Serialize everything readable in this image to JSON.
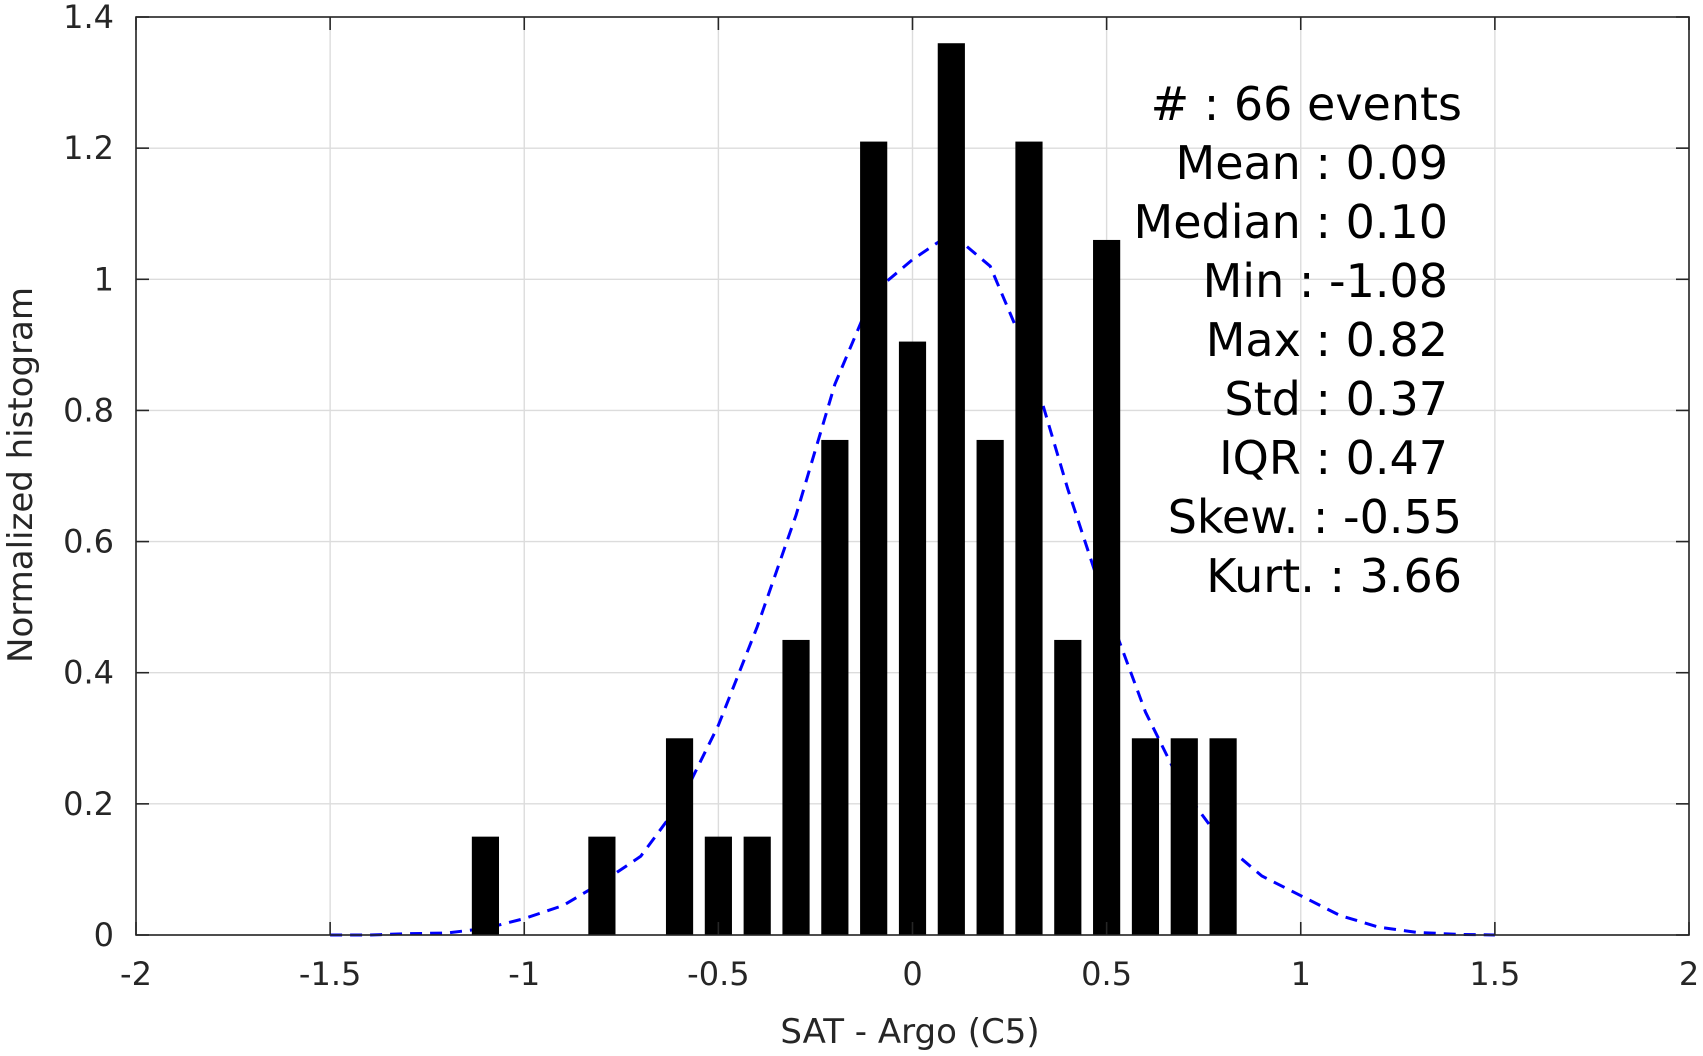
{
  "chart_data": {
    "type": "bar",
    "xlabel": "SAT - Argo (C5)",
    "ylabel": "Normalized histogram",
    "xlim": [
      -2,
      2
    ],
    "ylim": [
      0,
      1.4
    ],
    "x_ticks": [
      -2,
      -1.5,
      -1,
      -0.5,
      0,
      0.5,
      1,
      1.5,
      2
    ],
    "x_tick_labels": [
      "-2",
      "-1.5",
      "-1",
      "-0.5",
      "0",
      "0.5",
      "1",
      "1.5",
      "2"
    ],
    "y_ticks": [
      0,
      0.2,
      0.4,
      0.6,
      0.8,
      1,
      1.2,
      1.4
    ],
    "y_tick_labels": [
      "0",
      "0.2",
      "0.4",
      "0.6",
      "0.8",
      "1",
      "1.2",
      "1.4"
    ],
    "grid": true,
    "bar_width": 0.07,
    "bars": [
      {
        "x": -1.1,
        "value": 0.15
      },
      {
        "x": -0.8,
        "value": 0.15
      },
      {
        "x": -0.6,
        "value": 0.3
      },
      {
        "x": -0.5,
        "value": 0.15
      },
      {
        "x": -0.4,
        "value": 0.15
      },
      {
        "x": -0.3,
        "value": 0.45
      },
      {
        "x": -0.2,
        "value": 0.755
      },
      {
        "x": -0.1,
        "value": 1.21
      },
      {
        "x": 0.0,
        "value": 0.905
      },
      {
        "x": 0.1,
        "value": 1.36
      },
      {
        "x": 0.2,
        "value": 0.755
      },
      {
        "x": 0.3,
        "value": 1.21
      },
      {
        "x": 0.4,
        "value": 0.45
      },
      {
        "x": 0.5,
        "value": 1.06
      },
      {
        "x": 0.6,
        "value": 0.3
      },
      {
        "x": 0.7,
        "value": 0.3
      },
      {
        "x": 0.8,
        "value": 0.3
      }
    ],
    "bar_color": "#000000",
    "fit_curve": {
      "style": "dashed",
      "color": "#0000ff",
      "x": [
        -1.5,
        -1.4,
        -1.3,
        -1.2,
        -1.1,
        -1.0,
        -0.9,
        -0.8,
        -0.7,
        -0.6,
        -0.5,
        -0.4,
        -0.3,
        -0.2,
        -0.1,
        0.0,
        0.1,
        0.2,
        0.3,
        0.4,
        0.5,
        0.6,
        0.7,
        0.8,
        0.9,
        1.0,
        1.1,
        1.2,
        1.3,
        1.4,
        1.5
      ],
      "y": [
        0.0,
        0.0,
        0.002,
        0.003,
        0.01,
        0.025,
        0.045,
        0.08,
        0.12,
        0.2,
        0.32,
        0.47,
        0.64,
        0.84,
        0.98,
        1.03,
        1.07,
        1.02,
        0.88,
        0.68,
        0.5,
        0.34,
        0.22,
        0.14,
        0.09,
        0.06,
        0.03,
        0.012,
        0.004,
        0.001,
        0.0
      ]
    },
    "stats": [
      {
        "label": "#  : 66 events"
      },
      {
        "label": "Mean : 0.09"
      },
      {
        "label": "Median : 0.10"
      },
      {
        "label": "Min : -1.08"
      },
      {
        "label": "Max : 0.82"
      },
      {
        "label": "Std : 0.37"
      },
      {
        "label": "IQR : 0.47"
      },
      {
        "label": "Skew. : -0.55"
      },
      {
        "label": "Kurt. : 3.66"
      }
    ]
  }
}
